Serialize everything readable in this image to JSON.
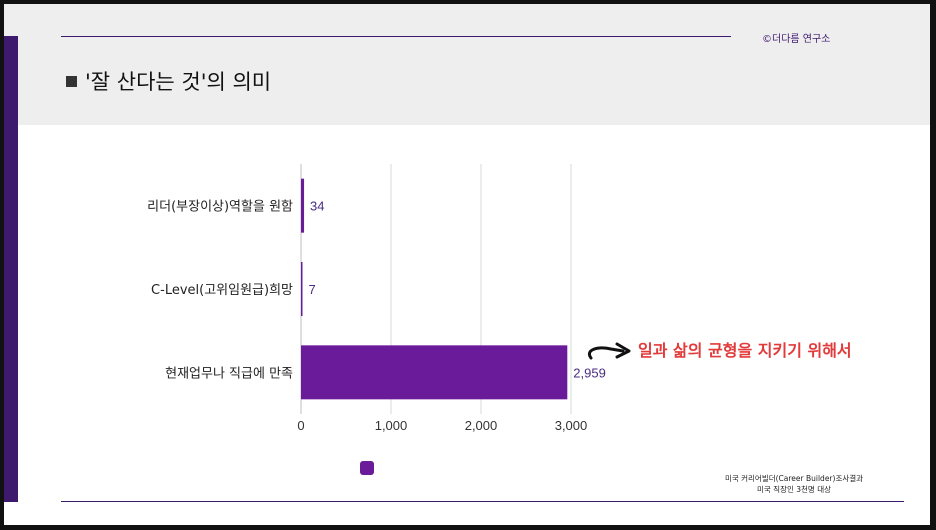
{
  "header": {
    "copyright": "©더다름 연구소",
    "title": "'잘 산다는 것'의 의미"
  },
  "chart_data": {
    "type": "bar",
    "orientation": "horizontal",
    "categories": [
      "리더(부장이상)역할을 원함",
      "C-Level(고위임원급)희망",
      "현재업무나 직급에 만족"
    ],
    "values": [
      34,
      7,
      2959
    ],
    "value_labels": [
      "34",
      "7",
      "2,959"
    ],
    "xlim": [
      0,
      3000
    ],
    "x_ticks": [
      0,
      1000,
      2000,
      3000
    ],
    "x_tick_labels": [
      "0",
      "1,000",
      "2,000",
      "3,000"
    ],
    "grid": true,
    "bar_color": "#6a1b9a",
    "label_color": "#4a2c82"
  },
  "callout": {
    "text": "일과 삶의 균형을 지키기 위해서",
    "color": "#e23b3b"
  },
  "source": {
    "line1": "미국 커리어빌더(Career Builder)조사결과",
    "line2": "미국 직장인 3천명 대상"
  }
}
